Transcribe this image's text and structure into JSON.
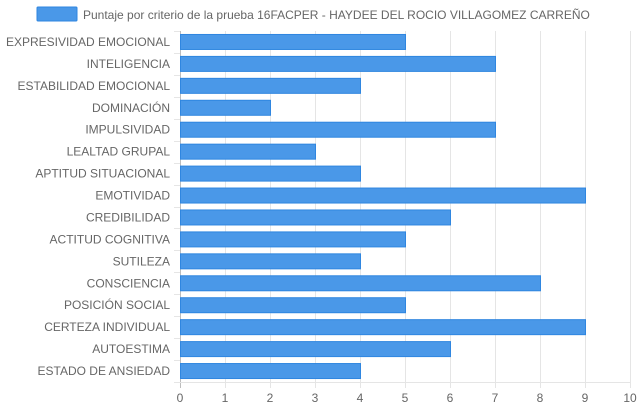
{
  "chart_data": {
    "type": "bar",
    "orientation": "horizontal",
    "categories": [
      "EXPRESIVIDAD EMOCIONAL",
      "INTELIGENCIA",
      "ESTABILIDAD EMOCIONAL",
      "DOMINACIÓN",
      "IMPULSIVIDAD",
      "LEALTAD GRUPAL",
      "APTITUD SITUACIONAL",
      "EMOTIVIDAD",
      "CREDIBILIDAD",
      "ACTITUD COGNITIVA",
      "SUTILEZA",
      "CONSCIENCIA",
      "POSICIÓN SOCIAL",
      "CERTEZA INDIVIDUAL",
      "AUTOESTIMA",
      "ESTADO DE ANSIEDAD"
    ],
    "series": [
      {
        "name": "Puntaje por criterio de la prueba 16FACPER - HAYDEE DEL ROCIO VILLAGOMEZ CARREÑO",
        "values": [
          5,
          7,
          4,
          2,
          7,
          3,
          4,
          9,
          6,
          5,
          4,
          8,
          5,
          9,
          6,
          4
        ],
        "color": "#4a98e8",
        "border_color": "#2f86e0"
      }
    ],
    "xlim": [
      0,
      10
    ],
    "x_ticks": [
      "0",
      "1",
      "2",
      "3",
      "4",
      "5",
      "6",
      "7",
      "8",
      "9",
      "10"
    ],
    "grid": true,
    "legend_position": "top"
  }
}
